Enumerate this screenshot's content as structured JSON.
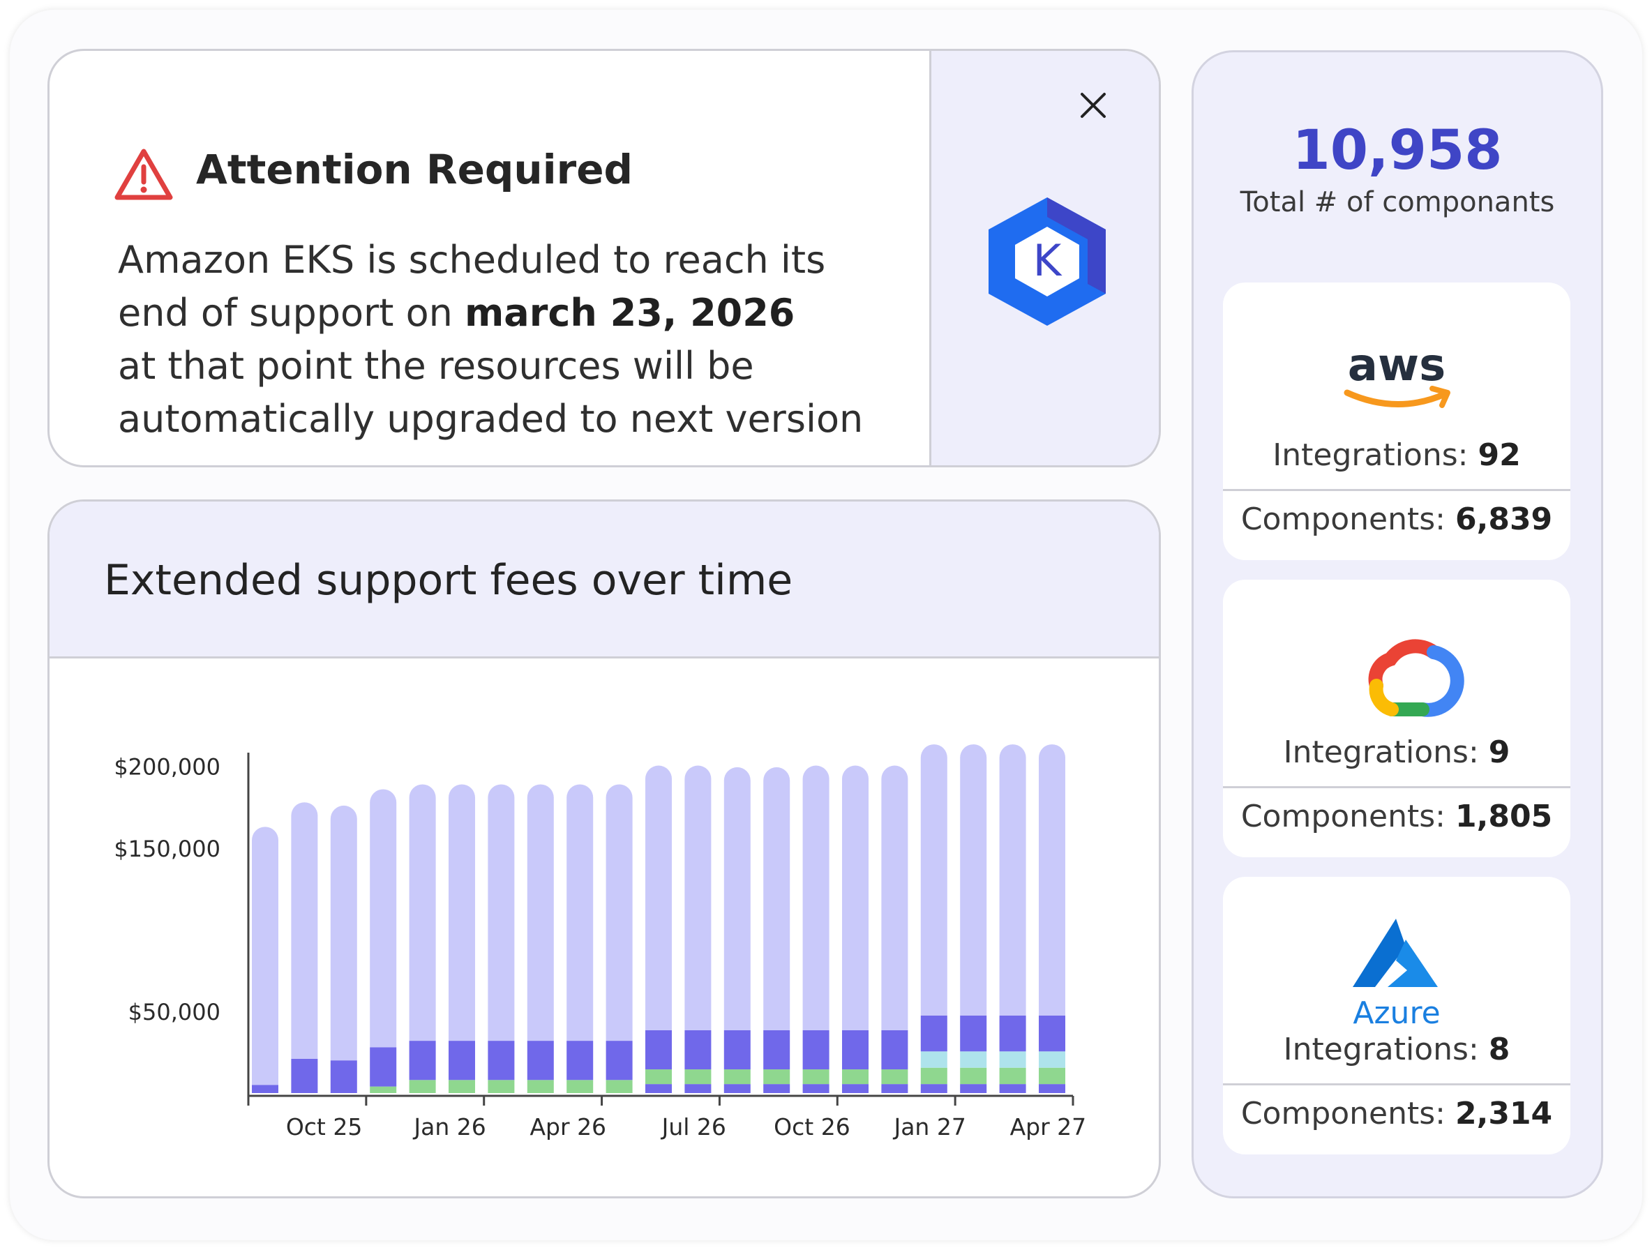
{
  "alert": {
    "title": "Attention Required",
    "body_line1": "Amazon EKS is scheduled to reach its",
    "body_line2_prefix": "end of support on ",
    "body_line2_date": "march 23, 2026",
    "body_line3": "at that point the resources will be",
    "body_line4": "automatically upgraded to next version",
    "logo_letter": "K"
  },
  "summary": {
    "total_value": "10,958",
    "total_label": "Total # of componants"
  },
  "providers": [
    {
      "logo_text": "aws",
      "integrations_label": "Integrations: ",
      "integrations_value": "92",
      "components_label": "Components: ",
      "components_value": "6,839"
    },
    {
      "logo_text": "",
      "integrations_label": "Integrations: ",
      "integrations_value": "9",
      "components_label": "Components: ",
      "components_value": "1,805"
    },
    {
      "logo_text": "Azure",
      "integrations_label": "Integrations: ",
      "integrations_value": "8",
      "components_label": "Components: ",
      "components_value": "2,314"
    }
  ],
  "colors": {
    "accent": "#3f45c6",
    "light_panel": "#eeeefb",
    "alert_red": "#e0403f",
    "k8s_blue": "#1f6cf0"
  },
  "chart_data": {
    "type": "bar",
    "stacked": true,
    "title": "Extended support fees over time",
    "y_tick_labels": [
      "$200,000",
      "$150,000",
      "$50,000"
    ],
    "y_tick_values": [
      200000,
      150000,
      50000
    ],
    "x_tick_labels": [
      "Oct 25",
      "Jan 26",
      "Apr 26",
      "Jul 26",
      "Oct 26",
      "Jan 27",
      "Apr 27"
    ],
    "x_tick_positions": [
      1.5,
      4.7,
      7.7,
      10.9,
      13.9,
      16.9,
      19.9
    ],
    "ylim": [
      0,
      205000
    ],
    "grid": false,
    "colors": [
      "#7068ea",
      "#8fd78f",
      "#aee3ec",
      "#7068ea",
      "#c9c9fa"
    ],
    "series": [
      {
        "values": [
          5000,
          0,
          0,
          0,
          0,
          0,
          0,
          0,
          0,
          0,
          5500,
          5500,
          5500,
          5500,
          5500,
          5500,
          5500,
          5500,
          5500,
          5500,
          5500
        ]
      },
      {
        "values": [
          0,
          0,
          0,
          4000,
          8000,
          8000,
          8000,
          8000,
          8000,
          8000,
          9000,
          9000,
          9000,
          9000,
          9000,
          9000,
          9000,
          10000,
          10000,
          10000,
          10000
        ]
      },
      {
        "values": [
          0,
          0,
          0,
          0,
          0,
          0,
          0,
          0,
          0,
          0,
          0,
          0,
          0,
          0,
          0,
          0,
          0,
          10000,
          10000,
          10000,
          10000
        ]
      },
      {
        "values": [
          0,
          21000,
          20000,
          24000,
          24000,
          24000,
          24000,
          24000,
          24000,
          24000,
          24000,
          24000,
          24000,
          24000,
          24000,
          24000,
          24000,
          22000,
          22000,
          22000,
          22000
        ]
      },
      {
        "values": [
          158000,
          157000,
          156000,
          158000,
          157000,
          157000,
          157000,
          157000,
          157000,
          157000,
          162000,
          162000,
          161000,
          161000,
          162000,
          162000,
          162000,
          166000,
          166000,
          166000,
          166000
        ]
      }
    ]
  }
}
